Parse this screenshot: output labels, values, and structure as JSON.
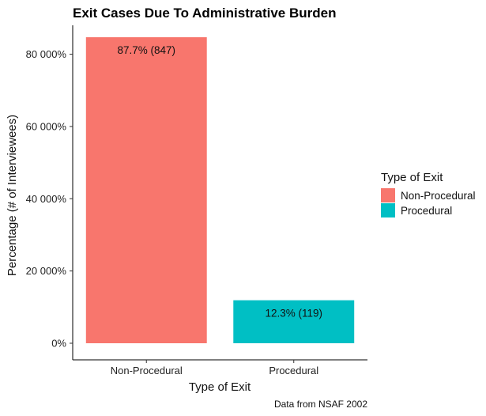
{
  "chart_data": {
    "type": "bar",
    "title": "Exit Cases Due To Administrative Burden",
    "xlabel": "Type of Exit",
    "ylabel": "Percentage (# of Interviewees)",
    "categories": [
      "Non-Procedural",
      "Procedural"
    ],
    "values": [
      847,
      119
    ],
    "data_labels": [
      "87.7% (847)",
      "12.3% (119)"
    ],
    "colors": [
      "#F8766D",
      "#00BFC4"
    ],
    "ylim": [
      0,
      880
    ],
    "yticks": [
      0,
      200,
      400,
      600,
      800
    ],
    "ytick_labels": [
      "0%",
      "20 000%",
      "40 000%",
      "60 000%",
      "80 000%"
    ],
    "grid": false,
    "legend": {
      "title": "Type of Exit",
      "position": "right",
      "entries": [
        "Non-Procedural",
        "Procedural"
      ]
    },
    "caption": "Data from NSAF 2002"
  }
}
